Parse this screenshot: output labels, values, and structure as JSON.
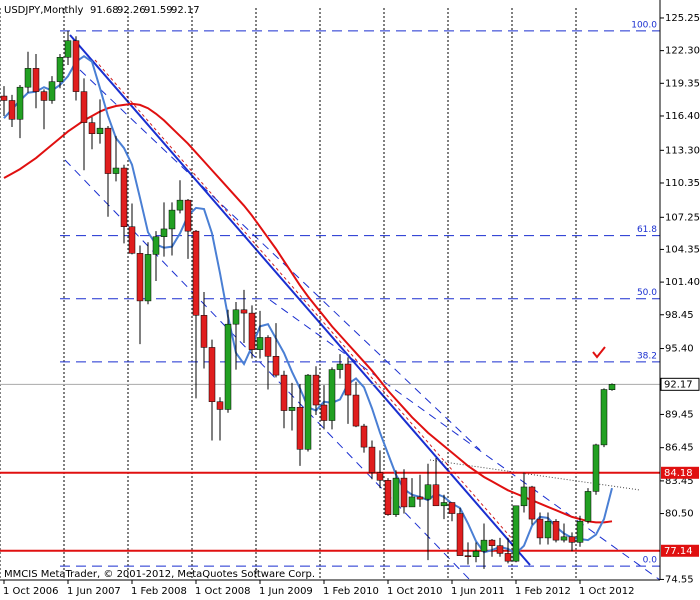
{
  "chart_data": {
    "type": "candlestick",
    "title": "USDJPY,Monthly",
    "footer": "MMCIS MetaTrader, © 2001-2012, MetaQuotes Software Corp.",
    "categories": [
      "1 Oct 2006",
      null,
      null,
      null,
      null,
      null,
      null,
      null,
      "1 Jun 2007",
      null,
      null,
      null,
      null,
      null,
      null,
      null,
      "1 Feb 2008",
      null,
      null,
      null,
      null,
      null,
      null,
      null,
      "1 Oct 2008",
      null,
      null,
      null,
      null,
      null,
      null,
      null,
      "1 Jun 2009",
      null,
      null,
      null,
      null,
      null,
      null,
      null,
      "1 Feb 2010",
      null,
      null,
      null,
      null,
      null,
      null,
      null,
      "1 Oct 2010",
      null,
      null,
      null,
      null,
      null,
      null,
      null,
      "1 Jun 2011",
      null,
      null,
      null,
      null,
      null,
      null,
      null,
      "1 Feb 2012",
      null,
      null,
      null,
      null,
      null,
      null,
      null,
      "1 Oct 2012",
      null,
      null,
      null,
      null
    ],
    "open": [
      118.2,
      117.8,
      116.1,
      119.0,
      120.7,
      118.6,
      117.8,
      119.5,
      121.7,
      123.2,
      118.6,
      115.8,
      114.8,
      115.3,
      111.2,
      111.7,
      106.4,
      104.0,
      99.7,
      103.9,
      105.5,
      106.2,
      107.9,
      108.8,
      106.0,
      98.4,
      95.5,
      90.6,
      89.9,
      97.6,
      98.9,
      98.6,
      95.3,
      96.4,
      94.7,
      93.0,
      89.8,
      90.1,
      86.3,
      93.0,
      90.3,
      88.9,
      93.5,
      94.0,
      91.2,
      88.4,
      86.5,
      84.2,
      83.5,
      80.4,
      83.7,
      81.1,
      82.0,
      81.8,
      83.1,
      81.2,
      81.5,
      80.5,
      76.7,
      76.6,
      77.1,
      78.1,
      77.6,
      76.9,
      76.2,
      81.2,
      82.9,
      80.0,
      78.3,
      79.8,
      78.1,
      78.4,
      77.9,
      79.8,
      82.5,
      86.7,
      91.68
    ],
    "high": [
      119.1,
      118.3,
      119.2,
      122.2,
      122.0,
      118.8,
      120.0,
      122.0,
      124.1,
      123.6,
      119.8,
      116.3,
      117.9,
      115.5,
      114.6,
      112.0,
      108.5,
      104.7,
      105.0,
      106.0,
      108.6,
      108.6,
      110.6,
      108.9,
      106.1,
      100.5,
      96.2,
      91.0,
      98.9,
      99.6,
      100.7,
      99.3,
      98.8,
      96.6,
      97.7,
      93.4,
      92.3,
      92.2,
      93.1,
      93.8,
      92.1,
      93.7,
      94.9,
      94.6,
      92.4,
      88.6,
      87.1,
      86.2,
      83.7,
      84.4,
      84.5,
      83.7,
      84.0,
      85.0,
      85.5,
      82.2,
      81.5,
      81.0,
      77.9,
      77.9,
      79.6,
      78.2,
      78.3,
      78.3,
      81.2,
      84.2,
      83.0,
      80.6,
      80.6,
      80.0,
      79.6,
      78.8,
      80.3,
      82.8,
      86.8,
      91.8,
      92.26
    ],
    "low": [
      116.4,
      115.4,
      114.4,
      118.5,
      117.1,
      115.2,
      117.5,
      118.9,
      121.0,
      117.8,
      111.5,
      113.4,
      113.9,
      107.3,
      110.5,
      104.9,
      103.9,
      95.8,
      99.4,
      101.5,
      103.7,
      103.8,
      107.6,
      103.5,
      90.9,
      93.6,
      87.1,
      87.1,
      89.6,
      93.5,
      95.9,
      94.5,
      94.5,
      91.7,
      92.8,
      88.2,
      88.0,
      84.8,
      86.1,
      89.4,
      88.1,
      88.1,
      92.7,
      88.6,
      88.3,
      86.0,
      83.6,
      82.8,
      80.3,
      80.2,
      80.5,
      81.1,
      81.1,
      76.3,
      81.2,
      80.0,
      79.8,
      76.7,
      75.9,
      76.1,
      75.5,
      76.6,
      76.6,
      76.0,
      76.1,
      80.6,
      79.5,
      77.7,
      77.7,
      77.9,
      77.9,
      77.1,
      77.5,
      79.6,
      82.2,
      86.5,
      91.59
    ],
    "close": [
      117.8,
      116.1,
      119.0,
      120.7,
      118.6,
      117.8,
      119.5,
      121.7,
      123.2,
      118.6,
      115.8,
      114.8,
      115.3,
      111.2,
      111.7,
      106.4,
      104.0,
      99.7,
      103.9,
      105.5,
      106.2,
      107.9,
      108.8,
      106.0,
      98.4,
      95.5,
      90.6,
      89.9,
      97.6,
      98.9,
      98.6,
      95.3,
      96.4,
      94.7,
      93.0,
      89.8,
      90.1,
      86.3,
      93.0,
      90.3,
      88.9,
      93.5,
      94.0,
      91.2,
      88.4,
      86.5,
      84.2,
      83.5,
      80.4,
      83.7,
      81.1,
      82.0,
      81.8,
      83.1,
      81.2,
      81.5,
      80.5,
      76.7,
      76.6,
      77.1,
      78.1,
      77.6,
      76.9,
      76.2,
      81.2,
      82.9,
      80.0,
      78.3,
      79.8,
      78.1,
      78.4,
      77.9,
      79.8,
      82.5,
      86.7,
      91.7,
      92.17
    ],
    "up_color": "#22a022",
    "down_color": "#e01e1e",
    "indicators": [
      {
        "color": "#e01010",
        "values": [
          110.8,
          111.2,
          111.6,
          112.1,
          112.6,
          113.2,
          113.8,
          114.4,
          115.0,
          115.5,
          116.0,
          116.4,
          116.8,
          117.1,
          117.3,
          117.4,
          117.5,
          117.4,
          117.1,
          116.6,
          116.0,
          115.3,
          114.6,
          113.9,
          113.1,
          112.3,
          111.5,
          110.7,
          109.9,
          109.1,
          108.3,
          107.4,
          106.4,
          105.4,
          104.4,
          103.3,
          102.2,
          101.1,
          100.1,
          99.2,
          98.3,
          97.4,
          96.6,
          95.8,
          95.0,
          94.2,
          93.4,
          92.5,
          91.6,
          90.8,
          90.0,
          89.2,
          88.5,
          87.8,
          87.2,
          86.6,
          86.0,
          85.4,
          84.8,
          84.3,
          83.8,
          83.4,
          83.0,
          82.6,
          82.3,
          82.0,
          81.7,
          81.4,
          81.1,
          80.8,
          80.5,
          80.2,
          80.0,
          79.8,
          79.7,
          79.7,
          79.8
        ]
      },
      {
        "color": "#4a7fd4",
        "values": [
          116.2,
          117.0,
          117.8,
          118.5,
          118.6,
          119.0,
          118.7,
          119.2,
          120.0,
          121.3,
          121.8,
          121.3,
          118.9,
          116.4,
          114.4,
          113.5,
          112.0,
          109.0,
          105.9,
          104.8,
          104.5,
          104.6,
          105.8,
          107.4,
          108.1,
          108.0,
          105.8,
          102.2,
          98.3,
          95.0,
          94.0,
          95.6,
          97.4,
          97.6,
          96.3,
          95.0,
          93.3,
          91.8,
          90.1,
          89.8,
          90.6,
          90.5,
          90.8,
          92.2,
          92.7,
          91.9,
          90.0,
          87.8,
          85.9,
          84.0,
          82.7,
          82.2,
          82.0,
          81.7,
          82.3,
          82.0,
          81.4,
          81.0,
          79.6,
          78.0,
          77.0,
          77.2,
          77.5,
          77.3,
          76.9,
          77.6,
          79.4,
          80.2,
          80.1,
          79.3,
          78.7,
          78.3,
          78.2,
          78.1,
          78.6,
          80.0,
          82.8
        ]
      }
    ],
    "fib_levels": [
      {
        "label": "100.0",
        "value": 124.08
      },
      {
        "label": "61.8",
        "value": 105.6
      },
      {
        "label": "50.0",
        "value": 99.9
      },
      {
        "label": "38.2",
        "value": 94.2
      },
      {
        "label": "0.0",
        "value": 75.75
      }
    ],
    "hlines": [
      84.18,
      77.14
    ],
    "hline_color": "#e01010",
    "ylim": [
      74.5,
      126.15
    ],
    "yticks": [
      125.25,
      {
        "value": 122.3,
        "label": "122.30"
      },
      119.35,
      {
        "value": 116.4,
        "label": "116.40"
      },
      {
        "value": 113.3,
        "label": "113.30"
      },
      110.35,
      107.25,
      104.35,
      {
        "value": 101.4,
        "label": "101.40"
      },
      98.45,
      {
        "value": 95.4,
        "label": "95.40"
      },
      89.45,
      86.45,
      83.45,
      {
        "value": 80.5,
        "label": "80.50"
      },
      74.55
    ]
  }
}
